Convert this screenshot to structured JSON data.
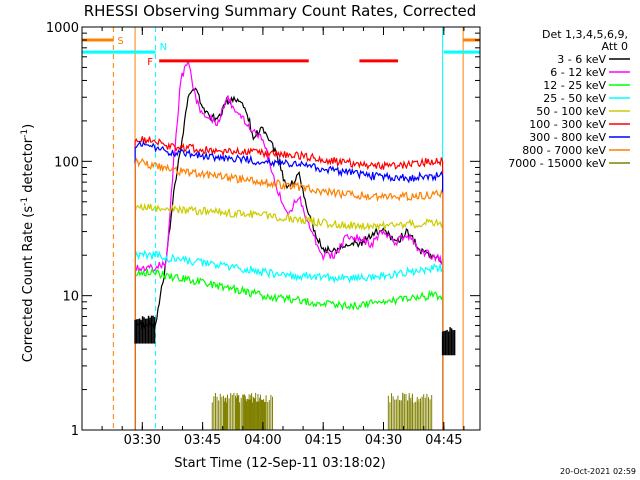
{
  "chart_data": {
    "type": "line",
    "title": "RHESSI Observing Summary Count Rates, Corrected",
    "xlabel": "Start Time (12-Sep-11 03:18:02)",
    "ylabel": "Corrected Count Rate (s",
    "ylabel_sup1": "-1",
    "ylabel_mid": " detector",
    "ylabel_sup2": "-1",
    "ylabel_end": ")",
    "yscale": "log",
    "ylim": [
      1,
      1000
    ],
    "xlim": [
      3.25,
      4.9
    ],
    "xticks": [
      {
        "v": 3.5,
        "label": "03:30"
      },
      {
        "v": 3.75,
        "label": "03:45"
      },
      {
        "v": 4.0,
        "label": "04:00"
      },
      {
        "v": 4.25,
        "label": "04:15"
      },
      {
        "v": 4.5,
        "label": "04:30"
      },
      {
        "v": 4.75,
        "label": "04:45"
      }
    ],
    "yticks": [
      {
        "v": 1,
        "label": "1"
      },
      {
        "v": 10,
        "label": "10"
      },
      {
        "v": 100,
        "label": "100"
      },
      {
        "v": 1000,
        "label": "1000"
      }
    ],
    "legend_header": [
      "Det 1,3,4,5,6,9,",
      "Att 0"
    ],
    "legend_position": "right",
    "series": [
      {
        "name": "3 - 6 keV",
        "color": "#000000",
        "x": [
          3.47,
          3.555,
          3.6,
          3.63,
          3.66,
          3.69,
          3.72,
          3.75,
          3.78,
          3.81,
          3.85,
          3.9,
          3.93,
          3.96,
          4.0,
          4.05,
          4.1,
          4.15,
          4.2,
          4.25,
          4.3,
          4.35,
          4.4,
          4.45,
          4.5,
          4.55,
          4.6,
          4.65,
          4.7,
          4.745
        ],
        "y": [
          6,
          6,
          18,
          60,
          130,
          300,
          350,
          250,
          220,
          200,
          280,
          290,
          250,
          150,
          180,
          120,
          60,
          80,
          35,
          22,
          22,
          25,
          24,
          28,
          32,
          25,
          30,
          22,
          20,
          18
        ]
      },
      {
        "name": "6 - 12 keV",
        "color": "#ff00ff",
        "x": [
          3.47,
          3.555,
          3.6,
          3.63,
          3.66,
          3.69,
          3.72,
          3.75,
          3.78,
          3.81,
          3.85,
          3.9,
          3.93,
          3.96,
          4.0,
          4.05,
          4.1,
          4.15,
          4.2,
          4.25,
          4.3,
          4.35,
          4.4,
          4.45,
          4.5,
          4.55,
          4.6,
          4.65,
          4.7,
          4.745
        ],
        "y": [
          16,
          16,
          18,
          100,
          420,
          550,
          300,
          220,
          210,
          180,
          300,
          220,
          200,
          170,
          150,
          70,
          40,
          55,
          30,
          20,
          20,
          28,
          27,
          24,
          30,
          25,
          28,
          22,
          20,
          18
        ]
      },
      {
        "name": "12 - 25 keV",
        "color": "#00ff00",
        "x": [
          3.47,
          3.555,
          3.6,
          3.7,
          3.8,
          3.9,
          4.0,
          4.1,
          4.2,
          4.3,
          4.4,
          4.5,
          4.6,
          4.7,
          4.745
        ],
        "y": [
          15,
          15,
          14,
          13,
          12,
          11,
          10,
          9.5,
          9,
          8.5,
          8.5,
          9,
          9.5,
          10,
          10
        ]
      },
      {
        "name": "25 - 50 keV",
        "color": "#00ffff",
        "x": [
          3.47,
          3.555,
          3.6,
          3.7,
          3.8,
          3.9,
          4.0,
          4.1,
          4.2,
          4.3,
          4.4,
          4.5,
          4.6,
          4.7,
          4.745
        ],
        "y": [
          20,
          20,
          19,
          18,
          17,
          16,
          15,
          14,
          14,
          13.5,
          13.5,
          14,
          15,
          16,
          16
        ]
      },
      {
        "name": "50 - 100 keV",
        "color": "#cccc00",
        "x": [
          3.47,
          3.555,
          3.6,
          3.7,
          3.8,
          3.9,
          4.0,
          4.1,
          4.2,
          4.3,
          4.4,
          4.5,
          4.6,
          4.7,
          4.745
        ],
        "y": [
          45,
          45,
          44,
          43,
          42,
          41,
          40,
          38,
          36,
          34,
          33,
          33,
          34,
          35,
          35
        ]
      },
      {
        "name": "100 - 300 keV",
        "color": "#ff0000",
        "x": [
          3.47,
          3.555,
          3.6,
          3.7,
          3.8,
          3.9,
          4.0,
          4.1,
          4.2,
          4.3,
          4.4,
          4.5,
          4.6,
          4.7,
          4.745
        ],
        "y": [
          150,
          140,
          130,
          125,
          120,
          118,
          115,
          112,
          108,
          100,
          95,
          92,
          95,
          100,
          100
        ]
      },
      {
        "name": "300 - 800 keV",
        "color": "#0000ff",
        "x": [
          3.47,
          3.555,
          3.6,
          3.7,
          3.8,
          3.9,
          4.0,
          4.1,
          4.2,
          4.3,
          4.4,
          4.5,
          4.6,
          4.7,
          4.745
        ],
        "y": [
          135,
          125,
          118,
          112,
          108,
          104,
          100,
          96,
          92,
          85,
          80,
          76,
          75,
          78,
          78
        ]
      },
      {
        "name": "800 - 7000 keV",
        "color": "#ff7f00",
        "x": [
          3.47,
          3.555,
          3.6,
          3.7,
          3.8,
          3.9,
          4.0,
          4.1,
          4.2,
          4.3,
          4.4,
          4.5,
          4.6,
          4.7,
          4.745
        ],
        "y": [
          100,
          92,
          88,
          82,
          78,
          74,
          70,
          66,
          62,
          58,
          56,
          55,
          55,
          56,
          57
        ]
      },
      {
        "name": "7000 - 15000 keV",
        "color": "#808000",
        "x": [
          3.79,
          3.84,
          3.89,
          3.92,
          3.95,
          3.98,
          4.52,
          4.56,
          4.6,
          4.64
        ],
        "y": [
          1.7,
          1.7,
          1.7,
          1.7,
          1.7,
          1.7,
          1.5,
          1.5,
          1.5,
          1.5
        ]
      }
    ],
    "flag_bars": [
      {
        "label": "S",
        "color": "#ff7f00",
        "y": 800,
        "segments": [
          [
            3.25,
            3.38
          ],
          [
            4.83,
            4.9
          ]
        ]
      },
      {
        "label": "N",
        "color": "#00ffff",
        "y": 650,
        "segments": [
          [
            3.25,
            3.555
          ],
          [
            4.75,
            4.9
          ]
        ]
      },
      {
        "label": "F",
        "color": "#ff0000",
        "y": 560,
        "segments": [
          [
            3.57,
            4.19
          ],
          [
            4.4,
            4.56
          ]
        ]
      }
    ],
    "vlines": [
      {
        "x": 3.38,
        "color": "#ff7f00",
        "style": "dashed"
      },
      {
        "x": 3.47,
        "color": "#ff7f00",
        "style": "solid"
      },
      {
        "x": 3.555,
        "color": "#00ffff",
        "style": "dashed"
      },
      {
        "x": 4.745,
        "color": "#00ffff",
        "style": "solid"
      },
      {
        "x": 4.83,
        "color": "#ff7f00",
        "style": "solid"
      },
      {
        "x": 4.9,
        "color": "#00ffff",
        "style": "dashed"
      }
    ]
  },
  "footer_timestamp": "20-Oct-2021 02:59"
}
